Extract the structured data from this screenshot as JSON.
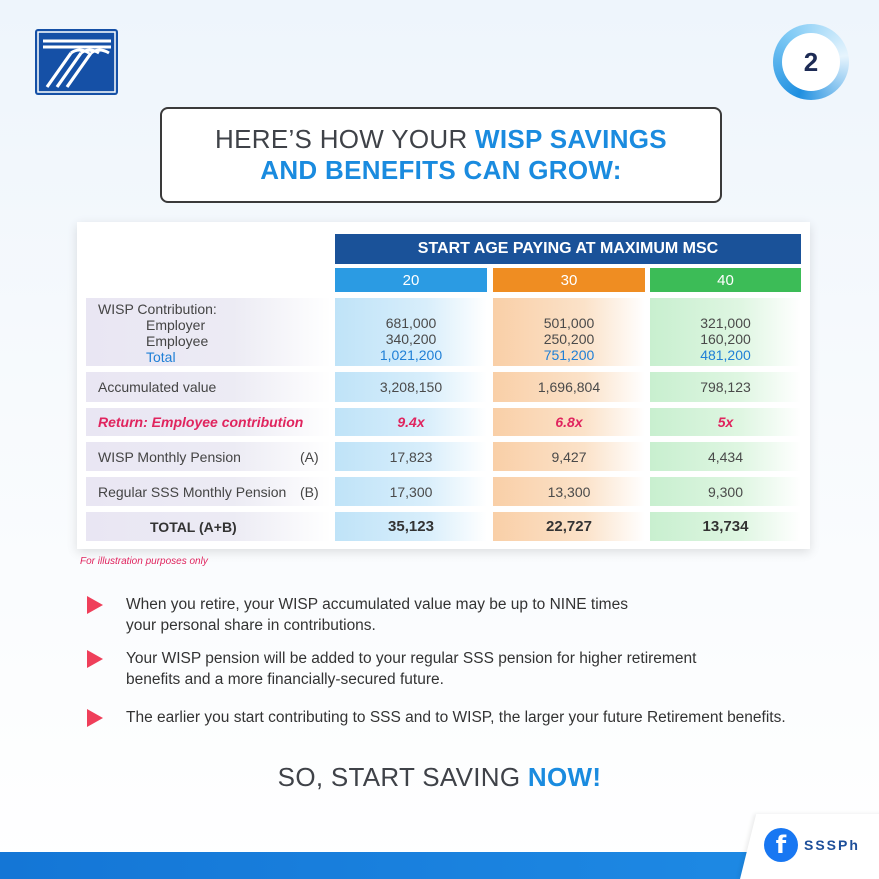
{
  "header": {
    "page_number": "2",
    "title_line1_plain": "HERE’S HOW YOUR ",
    "title_line1_accent": "WISP SAVINGS",
    "title_line2_accent": "AND BENEFITS CAN GROW:"
  },
  "table": {
    "header": "START AGE PAYING AT MAXIMUM MSC",
    "ages": [
      "20",
      "30",
      "40"
    ],
    "rows": {
      "contribution": {
        "label": "WISP Contribution:",
        "employer_label": "Employer",
        "employee_label": "Employee",
        "total_label": "Total",
        "employer": [
          "681,000",
          "501,000",
          "321,000"
        ],
        "employee": [
          "340,200",
          "250,200",
          "160,200"
        ],
        "total": [
          "1,021,200",
          "751,200",
          "481,200"
        ]
      },
      "accumulated": {
        "label": "Accumulated value",
        "values": [
          "3,208,150",
          "1,696,804",
          "798,123"
        ]
      },
      "return": {
        "label": "Return: Employee contribution",
        "values": [
          "9.4x",
          "6.8x",
          "5x"
        ]
      },
      "wisp_pension": {
        "label": "WISP Monthly Pension",
        "tag": "(A)",
        "values": [
          "17,823",
          "9,427",
          "4,434"
        ]
      },
      "sss_pension": {
        "label": "Regular SSS Monthly Pension",
        "tag": "(B)",
        "values": [
          "17,300",
          "13,300",
          "9,300"
        ]
      },
      "total": {
        "label": "TOTAL (A+B)",
        "values": [
          "35,123",
          "22,727",
          "13,734"
        ]
      }
    },
    "note": "For illustration purposes only"
  },
  "bullets": [
    {
      "line1": "When you retire, your WISP accumulated value may be up to NINE times",
      "line2": "your personal share in contributions."
    },
    {
      "line1": "Your WISP pension will be added to your regular SSS pension for higher retirement",
      "line2": "benefits and a more financially-secured future."
    },
    {
      "line1": "The earlier you start contributing to SSS and to WISP, the larger your future Retirement benefits.",
      "line2": ""
    }
  ],
  "cta": {
    "plain": "SO, START SAVING ",
    "accent": "NOW!"
  },
  "footer": {
    "social_handle": "SSSPh",
    "social_icon": "facebook-icon"
  },
  "colors": {
    "brand_blue": "#1550a6",
    "accent_blue": "#1a8bdf",
    "age20": "#2b9be3",
    "age30": "#ef8d22",
    "age40": "#3cbc57",
    "highlight_red": "#e0245e"
  }
}
